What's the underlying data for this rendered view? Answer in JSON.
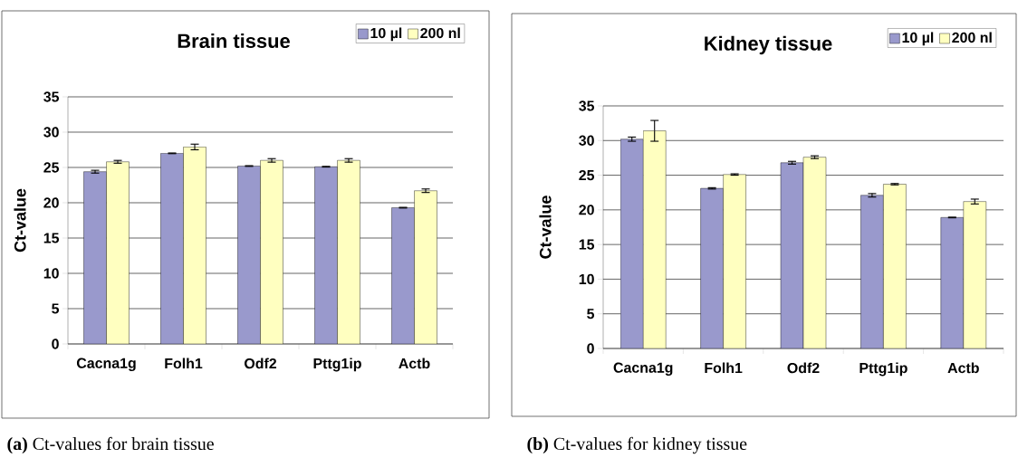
{
  "chart_data": [
    {
      "type": "bar",
      "title": "Brain tissue",
      "ylabel": "Ct-value",
      "categories": [
        "Cacna1g",
        "Folh1",
        "Odf2",
        "Pttg1ip",
        "Actb"
      ],
      "series": [
        {
          "name": "10 µl",
          "color": "#9999cc",
          "values": [
            24.4,
            27.0,
            25.2,
            25.1,
            19.3
          ],
          "errors": [
            0.2,
            0.05,
            0.05,
            0.05,
            0.05
          ]
        },
        {
          "name": "200 nl",
          "color": "#ffffc0",
          "values": [
            25.8,
            27.9,
            26.0,
            26.0,
            21.7
          ],
          "errors": [
            0.2,
            0.4,
            0.25,
            0.25,
            0.25
          ]
        }
      ],
      "ylim": [
        0,
        35
      ],
      "yticks": [
        0,
        5,
        10,
        15,
        20,
        25,
        30,
        35
      ],
      "grid": "y",
      "legend": "top right",
      "annotations": [
        "**(a)** Ct-values for brain tissue"
      ]
    },
    {
      "type": "bar",
      "title": "Kidney tissue",
      "ylabel": "Ct-value",
      "categories": [
        "Cacna1g",
        "Folh1",
        "Odf2",
        "Pttg1ip",
        "Actb"
      ],
      "series": [
        {
          "name": "10 µl",
          "color": "#9999cc",
          "values": [
            30.2,
            23.1,
            26.8,
            22.1,
            18.9
          ],
          "errors": [
            0.3,
            0.1,
            0.2,
            0.25,
            0.05
          ]
        },
        {
          "name": "200 nl",
          "color": "#ffffc0",
          "values": [
            31.4,
            25.1,
            27.6,
            23.7,
            21.2
          ],
          "errors": [
            1.5,
            0.1,
            0.2,
            0.1,
            0.35
          ]
        }
      ],
      "ylim": [
        0,
        35
      ],
      "yticks": [
        0,
        5,
        10,
        15,
        20,
        25,
        30,
        35
      ],
      "grid": "y",
      "legend": "top right",
      "annotations": [
        "**(b)** Ct-values for kidney tissue"
      ]
    }
  ]
}
